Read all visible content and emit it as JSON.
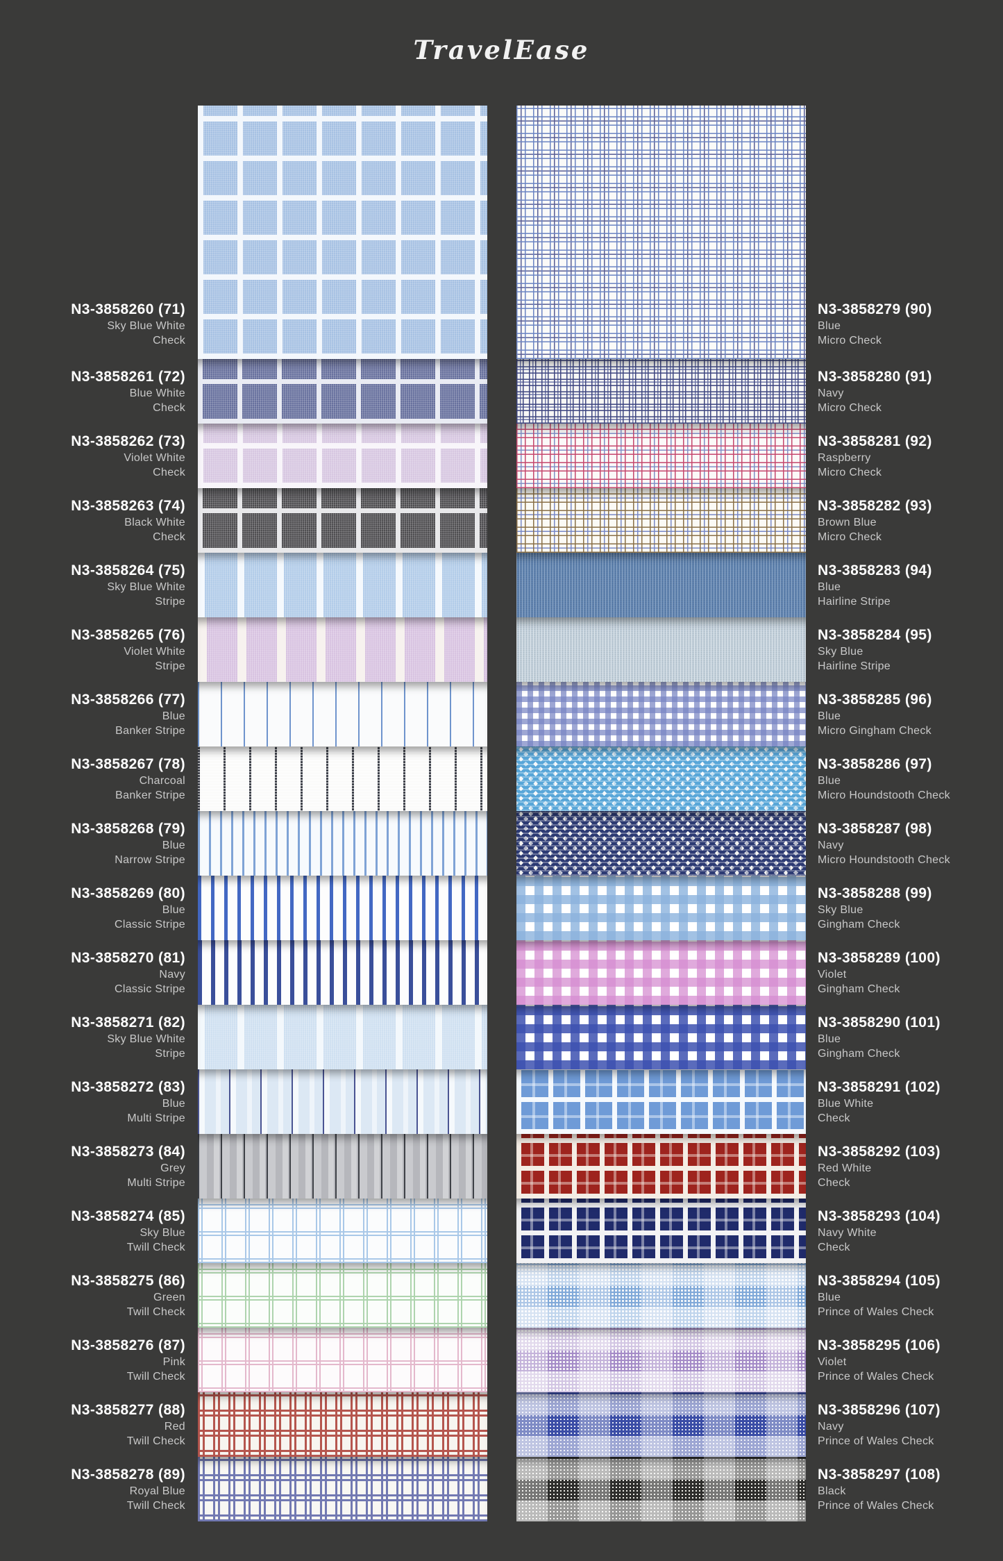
{
  "title": "TravelEase",
  "theme": {
    "background": "#3a3a39",
    "code_text_color": "#ffffff",
    "sub_text_color": "#c9c9c9"
  },
  "columns": {
    "left": {
      "items": [
        {
          "code": "N3-3858260 (71)",
          "color_name": "Sky Blue White",
          "pattern_name": "Check",
          "swatch": {
            "type": "windowpane",
            "base": "#a6c1e3",
            "line": "#f3f7fc",
            "spacing": 57,
            "lineWidth": 8
          }
        },
        {
          "code": "N3-3858261 (72)",
          "color_name": "Blue White",
          "pattern_name": "Check",
          "swatch": {
            "type": "windowpane",
            "base": "#68719e",
            "line": "#e9ebf3",
            "spacing": 57,
            "lineWidth": 7
          }
        },
        {
          "code": "N3-3858262 (73)",
          "color_name": "Violet White",
          "pattern_name": "Check",
          "swatch": {
            "type": "windowpane",
            "base": "#d7c7e1",
            "line": "#f8f5fa",
            "spacing": 57,
            "lineWidth": 8
          }
        },
        {
          "code": "N3-3858263 (74)",
          "color_name": "Black White",
          "pattern_name": "Check",
          "swatch": {
            "type": "windowpane",
            "base": "#4f4e51",
            "line": "#e8e8ea",
            "spacing": 57,
            "lineWidth": 7
          }
        },
        {
          "code": "N3-3858264 (75)",
          "color_name": "Sky Blue White",
          "pattern_name": "Stripe",
          "swatch": {
            "type": "stripe",
            "base": "#b2cce9",
            "stripe": "#f5f9fd",
            "spacing": 57,
            "stripeWidth": 10
          }
        },
        {
          "code": "N3-3858265 (76)",
          "color_name": "Violet White",
          "pattern_name": "Stripe",
          "swatch": {
            "type": "stripe",
            "base": "#d8c3e1",
            "stripe": "#f7f2ef",
            "spacing": 57,
            "stripeWidth": 13
          }
        },
        {
          "code": "N3-3858266 (77)",
          "color_name": "Blue",
          "pattern_name": "Banker Stripe",
          "swatch": {
            "type": "pinstripe",
            "bg": "#fafbfc",
            "line": "#6f94cd",
            "spacing": 33,
            "lineWidth": 2
          }
        },
        {
          "code": "N3-3858267 (78)",
          "color_name": "Charcoal",
          "pattern_name": "Banker Stripe",
          "swatch": {
            "type": "pinstripe",
            "bg": "#fbfbfa",
            "line": "#41444d",
            "spacing": 37,
            "lineWidth": 3,
            "dashed": true
          }
        },
        {
          "code": "N3-3858268 (79)",
          "color_name": "Blue",
          "pattern_name": "Narrow Stripe",
          "swatch": {
            "type": "pinstripe",
            "bg": "#f7fafd",
            "line": "#7fa3d6",
            "spacing": 16,
            "lineWidth": 3
          }
        },
        {
          "code": "N3-3858269 (80)",
          "color_name": "Blue",
          "pattern_name": "Classic Stripe",
          "swatch": {
            "type": "pinstripe",
            "bg": "#fdfdfd",
            "line": "#4368c3",
            "spacing": 19,
            "lineWidth": 5
          }
        },
        {
          "code": "N3-3858270 (81)",
          "color_name": "Navy",
          "pattern_name": "Classic Stripe",
          "swatch": {
            "type": "pinstripe",
            "bg": "#fdfdfd",
            "line": "#3a4f9a",
            "spacing": 19,
            "lineWidth": 6
          }
        },
        {
          "code": "N3-3858271 (82)",
          "color_name": "Sky Blue White",
          "pattern_name": "Stripe",
          "swatch": {
            "type": "stripe",
            "base": "#cfe0f1",
            "stripe": "#f3f8fc",
            "spacing": 57,
            "stripeWidth": 10
          }
        },
        {
          "code": "N3-3858272 (83)",
          "color_name": "Blue",
          "pattern_name": "Multi Stripe",
          "swatch": {
            "type": "multi",
            "stops": [
              [
                "#4a5492",
                0,
                2
              ],
              [
                "#f5f9fc",
                2,
                10
              ],
              [
                "#dce8f4",
                10,
                26
              ],
              [
                "#eef4fa",
                26,
                33
              ],
              [
                "#dce8f4",
                33,
                45
              ]
            ]
          }
        },
        {
          "code": "N3-3858273 (84)",
          "color_name": "Grey",
          "pattern_name": "Multi Stripe",
          "swatch": {
            "type": "multi",
            "stops": [
              [
                "#3e4147",
                0,
                2
              ],
              [
                "#c9cace",
                2,
                13
              ],
              [
                "#b6b7bc",
                13,
                23
              ],
              [
                "#d1d2d5",
                23,
                31
              ],
              [
                "#b6b7bc",
                31,
                33
              ]
            ]
          }
        },
        {
          "code": "N3-3858274 (85)",
          "color_name": "Sky Blue",
          "pattern_name": "Twill Check",
          "swatch": {
            "type": "tattersall",
            "bg": "#fbfcfd",
            "line": "#a9c8e8",
            "spacingX": 34,
            "spacingY": 39,
            "lineWidth": 2,
            "gap": 3
          }
        },
        {
          "code": "N3-3858275 (86)",
          "color_name": "Green",
          "pattern_name": "Twill Check",
          "swatch": {
            "type": "tattersall",
            "bg": "#fbfdfb",
            "line": "#aed4ae",
            "spacingX": 34,
            "spacingY": 39,
            "lineWidth": 2,
            "gap": 3
          }
        },
        {
          "code": "N3-3858276 (87)",
          "color_name": "Pink",
          "pattern_name": "Twill Check",
          "swatch": {
            "type": "tattersall",
            "bg": "#fdfbfc",
            "line": "#e4b8cc",
            "spacingX": 34,
            "spacingY": 39,
            "lineWidth": 2,
            "gap": 3
          }
        },
        {
          "code": "N3-3858277 (88)",
          "color_name": "Red",
          "pattern_name": "Twill Check",
          "swatch": {
            "type": "tattersall",
            "bg": "#f7f5f0",
            "line": "#b5564e",
            "spacingX": 22,
            "spacingY": 29,
            "lineWidth": 3,
            "gap": 4
          }
        },
        {
          "code": "N3-3858278 (89)",
          "color_name": "Royal Blue",
          "pattern_name": "Twill Check",
          "swatch": {
            "type": "tattersall",
            "bg": "#f8f7f3",
            "line": "#7279b2",
            "spacingX": 22,
            "spacingY": 29,
            "lineWidth": 3,
            "gap": 4
          }
        }
      ]
    },
    "right": {
      "items": [
        {
          "code": "N3-3858279 (90)",
          "color_name": "Blue",
          "pattern_name": "Micro Check",
          "swatch": {
            "type": "micro",
            "bg": "#fafaf8",
            "c1": "#6b84c3",
            "c2": "#585d95",
            "cell": 12
          }
        },
        {
          "code": "N3-3858280 (91)",
          "color_name": "Navy",
          "pattern_name": "Micro Check",
          "swatch": {
            "type": "micro",
            "bg": "#f7f7f5",
            "c1": "#3d4580",
            "c2": "#7078aa",
            "cell": 9
          }
        },
        {
          "code": "N3-3858281 (92)",
          "color_name": "Raspberry",
          "pattern_name": "Micro Check",
          "swatch": {
            "type": "micro",
            "bg": "#fbf9f8",
            "c1": "#c5486e",
            "c2": "#8090c7",
            "cell": 12
          }
        },
        {
          "code": "N3-3858282 (93)",
          "color_name": "Brown Blue",
          "pattern_name": "Micro Check",
          "swatch": {
            "type": "micro",
            "bg": "#fbfaf5",
            "c1": "#8a7048",
            "c2": "#7888c7",
            "cell": 12
          }
        },
        {
          "code": "N3-3858283 (94)",
          "color_name": "Blue",
          "pattern_name": "Hairline Stripe",
          "swatch": {
            "type": "hairline",
            "base": "#5e81ad",
            "line": "#8fa9c9"
          }
        },
        {
          "code": "N3-3858284 (95)",
          "color_name": "Sky Blue",
          "pattern_name": "Hairline Stripe",
          "swatch": {
            "type": "hairline",
            "base": "#bfcdd8",
            "line": "#dfe7ed"
          }
        },
        {
          "code": "N3-3858285 (96)",
          "color_name": "Blue",
          "pattern_name": "Micro Gingham Check",
          "swatch": {
            "type": "gingham",
            "bg": "#ffffff",
            "c": "#7885c4",
            "alpha": 0.72,
            "cell": 8
          }
        },
        {
          "code": "N3-3858286 (97)",
          "color_name": "Blue",
          "pattern_name": "Micro Houndstooth Check",
          "swatch": {
            "type": "houndstooth",
            "bg": "#f4f8fb",
            "c": "#58a6d8",
            "cell": 10
          }
        },
        {
          "code": "N3-3858287 (98)",
          "color_name": "Navy",
          "pattern_name": "Micro Houndstooth Check",
          "swatch": {
            "type": "houndstooth",
            "bg": "#f2f2f0",
            "c": "#2c3a73",
            "cell": 10
          }
        },
        {
          "code": "N3-3858288 (99)",
          "color_name": "Sky Blue",
          "pattern_name": "Gingham Check",
          "swatch": {
            "type": "gingham",
            "bg": "#ffffff",
            "c": "#8bb2dd",
            "alpha": 0.8,
            "cell": 13
          }
        },
        {
          "code": "N3-3858289 (100)",
          "color_name": "Violet",
          "pattern_name": "Gingham Check",
          "swatch": {
            "type": "gingham",
            "bg": "#ffffff",
            "c": "#d68dd1",
            "alpha": 0.75,
            "cell": 13
          }
        },
        {
          "code": "N3-3858290 (101)",
          "color_name": "Blue",
          "pattern_name": "Gingham Check",
          "swatch": {
            "type": "gingham",
            "bg": "#ffffff",
            "c": "#3d51b0",
            "alpha": 0.85,
            "cell": 13
          }
        },
        {
          "code": "N3-3858291 (102)",
          "color_name": "Blue White",
          "pattern_name": "Check",
          "swatch": {
            "type": "boldcheck",
            "base": "#6f9bd7",
            "line": "#f5f9fd",
            "spacing": 46,
            "lineWidth": 7
          }
        },
        {
          "code": "N3-3858292 (103)",
          "color_name": "Red White",
          "pattern_name": "Check",
          "swatch": {
            "type": "boldcheck",
            "base": "#9e241e",
            "line": "#f4ede5",
            "spacing": 40,
            "lineWidth": 7
          }
        },
        {
          "code": "N3-3858293 (104)",
          "color_name": "Navy White",
          "pattern_name": "Check",
          "swatch": {
            "type": "boldcheck",
            "base": "#202b6b",
            "line": "#f2f2f4",
            "spacing": 40,
            "lineWidth": 7
          }
        },
        {
          "code": "N3-3858294 (105)",
          "color_name": "Blue",
          "pattern_name": "Prince of Wales Check",
          "swatch": {
            "type": "glen",
            "bg": "#eef3f9",
            "c": "#7fa8d8",
            "lineWidth": 2,
            "gap": 3,
            "band": 30
          }
        },
        {
          "code": "N3-3858295 (106)",
          "color_name": "Violet",
          "pattern_name": "Prince of Wales Check",
          "swatch": {
            "type": "glen",
            "bg": "#f2f0f6",
            "c": "#a48bc7",
            "lineWidth": 2,
            "gap": 3,
            "band": 30
          }
        },
        {
          "code": "N3-3858296 (107)",
          "color_name": "Navy",
          "pattern_name": "Prince of Wales Check",
          "swatch": {
            "type": "glen",
            "bg": "#e7eaf4",
            "c": "#3b4da6",
            "lineWidth": 3,
            "gap": 2,
            "band": 30
          }
        },
        {
          "code": "N3-3858297 (108)",
          "color_name": "Black",
          "pattern_name": "Prince of Wales Check",
          "swatch": {
            "type": "glen",
            "bg": "#efeee8",
            "c": "#2e2e2c",
            "lineWidth": 3,
            "gap": 2,
            "band": 30
          }
        }
      ]
    }
  }
}
